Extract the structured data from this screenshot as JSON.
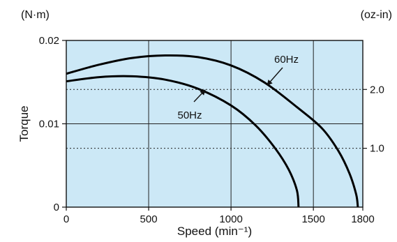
{
  "chart_data": {
    "type": "line",
    "xlabel": "Speed (min⁻¹)",
    "ylabel": "Torque",
    "left_unit": "(N·m)",
    "right_unit": "(oz-in)",
    "xlim": [
      0,
      1800
    ],
    "ylim": [
      0,
      0.02
    ],
    "x_ticks": [
      0,
      500,
      1000,
      1500,
      1800
    ],
    "x_tick_labels": [
      "0",
      "500",
      "1000",
      "1500",
      "1800"
    ],
    "y_ticks": [
      0,
      0.01,
      0.02
    ],
    "y_tick_labels": [
      "0",
      "0.01",
      "0.02"
    ],
    "y2_ticks": [
      1.0,
      2.0
    ],
    "y2_tick_labels": [
      "1.0",
      "2.0"
    ],
    "y2_to_y_factor": 0.00706,
    "grid": true,
    "background_color": "#cce8f6",
    "line_color": "#000000",
    "series": [
      {
        "name": "60Hz",
        "points": [
          [
            0,
            0.016
          ],
          [
            200,
            0.0171
          ],
          [
            400,
            0.0179
          ],
          [
            600,
            0.0182
          ],
          [
            800,
            0.018
          ],
          [
            1000,
            0.017
          ],
          [
            1200,
            0.015
          ],
          [
            1400,
            0.012
          ],
          [
            1550,
            0.0095
          ],
          [
            1650,
            0.0068
          ],
          [
            1720,
            0.004
          ],
          [
            1760,
            0.0015
          ],
          [
            1770,
            0
          ]
        ]
      },
      {
        "name": "50Hz",
        "points": [
          [
            0,
            0.0151
          ],
          [
            200,
            0.0156
          ],
          [
            400,
            0.0157
          ],
          [
            600,
            0.0153
          ],
          [
            800,
            0.0142
          ],
          [
            1000,
            0.0122
          ],
          [
            1150,
            0.0098
          ],
          [
            1270,
            0.007
          ],
          [
            1350,
            0.0045
          ],
          [
            1400,
            0.002
          ],
          [
            1410,
            0
          ]
        ]
      }
    ],
    "annotations": [
      {
        "text": "60Hz",
        "for": "60Hz"
      },
      {
        "text": "50Hz",
        "for": "50Hz"
      }
    ]
  }
}
